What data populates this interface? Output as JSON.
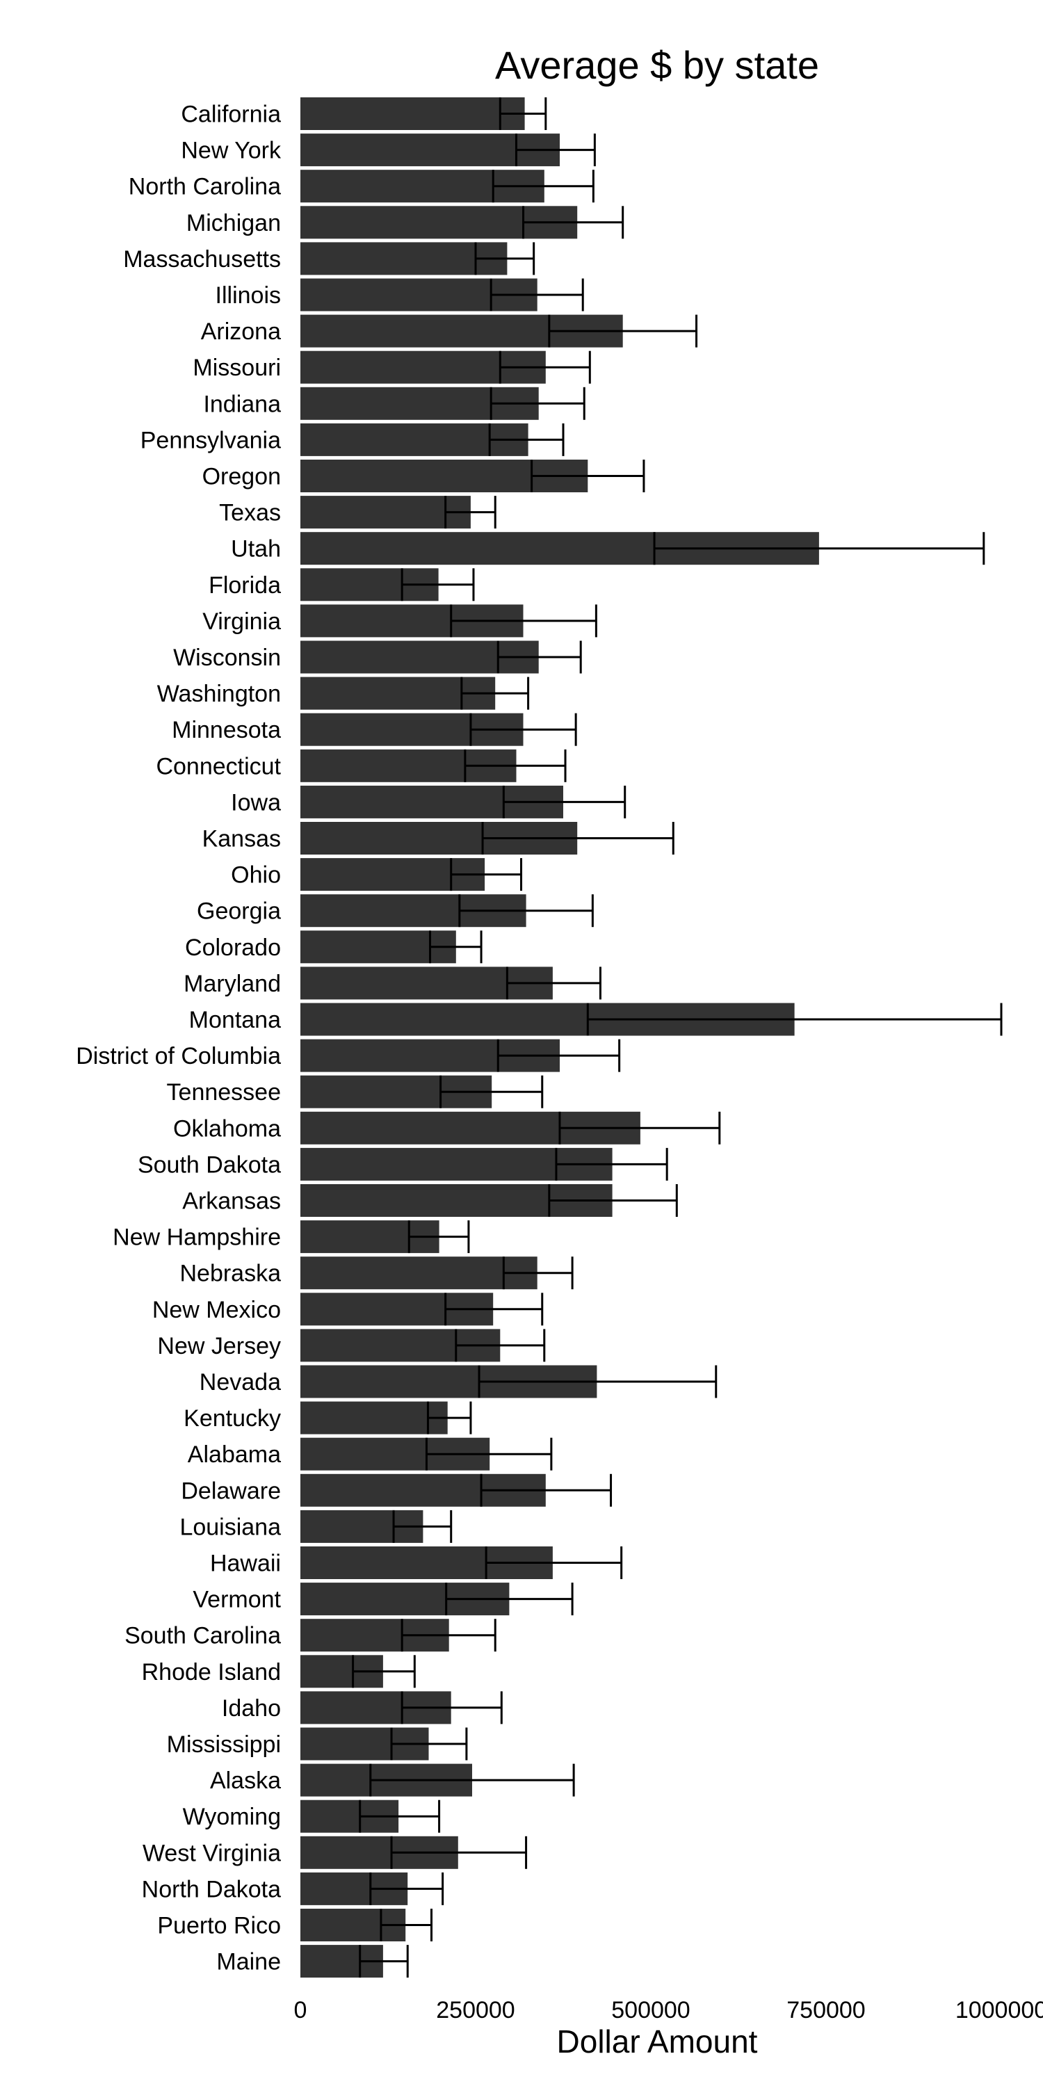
{
  "chart_data": {
    "type": "bar",
    "orientation": "horizontal",
    "title": "Average $ by state",
    "xlabel": "Dollar Amount",
    "ylabel": "",
    "xlim": [
      0,
      1000000
    ],
    "xticks": [
      0,
      250000,
      500000,
      750000,
      1000000
    ],
    "grid": false,
    "legend": "none",
    "bar_color": "#333333",
    "error_color": "#000000",
    "categories": [
      "California",
      "New York",
      "North Carolina",
      "Michigan",
      "Massachusetts",
      "Illinois",
      "Arizona",
      "Missouri",
      "Indiana",
      "Pennsylvania",
      "Oregon",
      "Texas",
      "Utah",
      "Florida",
      "Virginia",
      "Wisconsin",
      "Washington",
      "Minnesota",
      "Connecticut",
      "Iowa",
      "Kansas",
      "Ohio",
      "Georgia",
      "Colorado",
      "Maryland",
      "Montana",
      "District of Columbia",
      "Tennessee",
      "Oklahoma",
      "South Dakota",
      "Arkansas",
      "New Hampshire",
      "Nebraska",
      "New Mexico",
      "New Jersey",
      "Nevada",
      "Kentucky",
      "Alabama",
      "Delaware",
      "Louisiana",
      "Hawaii",
      "Vermont",
      "South Carolina",
      "Rhode Island",
      "Idaho",
      "Mississippi",
      "Alaska",
      "Wyoming",
      "West Virginia",
      "North Dakota",
      "Puerto Rico",
      "Maine"
    ],
    "values": [
      320000,
      370000,
      348000,
      395000,
      295000,
      338000,
      460000,
      350000,
      340000,
      325000,
      410000,
      243000,
      740000,
      197000,
      318000,
      340000,
      278000,
      318000,
      308000,
      375000,
      395000,
      263000,
      322000,
      222000,
      360000,
      705000,
      370000,
      273000,
      485000,
      445000,
      445000,
      198000,
      338000,
      275000,
      285000,
      423000,
      210000,
      270000,
      350000,
      175000,
      360000,
      298000,
      212000,
      118000,
      215000,
      183000,
      245000,
      140000,
      225000,
      153000,
      150000,
      118000
    ],
    "error_low": [
      285000,
      308000,
      275000,
      318000,
      250000,
      272000,
      355000,
      285000,
      272000,
      270000,
      330000,
      207000,
      505000,
      145000,
      215000,
      282000,
      230000,
      243000,
      235000,
      290000,
      260000,
      215000,
      227000,
      185000,
      295000,
      410000,
      282000,
      200000,
      370000,
      365000,
      355000,
      155000,
      290000,
      207000,
      222000,
      255000,
      182000,
      180000,
      258000,
      133000,
      265000,
      208000,
      145000,
      75000,
      145000,
      130000,
      100000,
      85000,
      130000,
      100000,
      115000,
      85000
    ],
    "error_high": [
      350000,
      420000,
      418000,
      460000,
      333000,
      403000,
      565000,
      413000,
      405000,
      375000,
      490000,
      278000,
      975000,
      247000,
      422000,
      400000,
      325000,
      393000,
      378000,
      463000,
      532000,
      315000,
      417000,
      258000,
      428000,
      1000000,
      455000,
      345000,
      598000,
      523000,
      537000,
      240000,
      388000,
      345000,
      348000,
      593000,
      243000,
      358000,
      443000,
      215000,
      458000,
      388000,
      278000,
      163000,
      287000,
      237000,
      390000,
      198000,
      322000,
      203000,
      187000,
      153000
    ]
  }
}
